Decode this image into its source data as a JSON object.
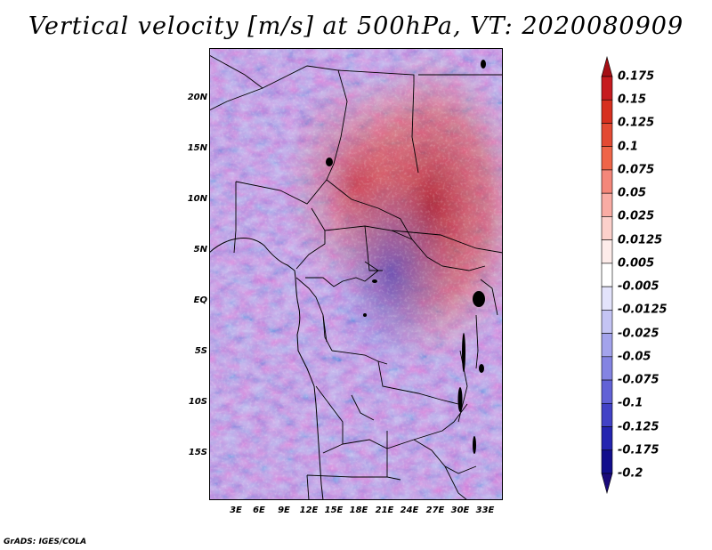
{
  "title": "Vertical velocity [m/s] at 500hPa, VT: 2020080909",
  "credit": "GrADS: IGES/COLA",
  "lat_labels": [
    "20N",
    "15N",
    "10N",
    "5N",
    "EQ",
    "5S",
    "10S",
    "15S"
  ],
  "lon_labels": [
    "3E",
    "6E",
    "9E",
    "12E",
    "15E",
    "18E",
    "21E",
    "24E",
    "27E",
    "30E",
    "33E"
  ],
  "colorbar": {
    "labels": [
      "0.175",
      "0.15",
      "0.125",
      "0.1",
      "0.075",
      "0.05",
      "0.025",
      "0.0125",
      "0.005",
      "-0.005",
      "-0.0125",
      "-0.025",
      "-0.05",
      "-0.075",
      "-0.1",
      "-0.125",
      "-0.175",
      "-0.2"
    ],
    "colors": [
      "#a50f15",
      "#c61b1f",
      "#d7301f",
      "#e34a33",
      "#ef6548",
      "#f4877a",
      "#f9aca4",
      "#fcd0cb",
      "#fdecea",
      "#ffffff",
      "#e3e3fb",
      "#c4c4f4",
      "#a3a3ec",
      "#8484e2",
      "#6262d6",
      "#4242c6",
      "#2424b0",
      "#120e8c",
      "#1a0a7a"
    ]
  }
}
